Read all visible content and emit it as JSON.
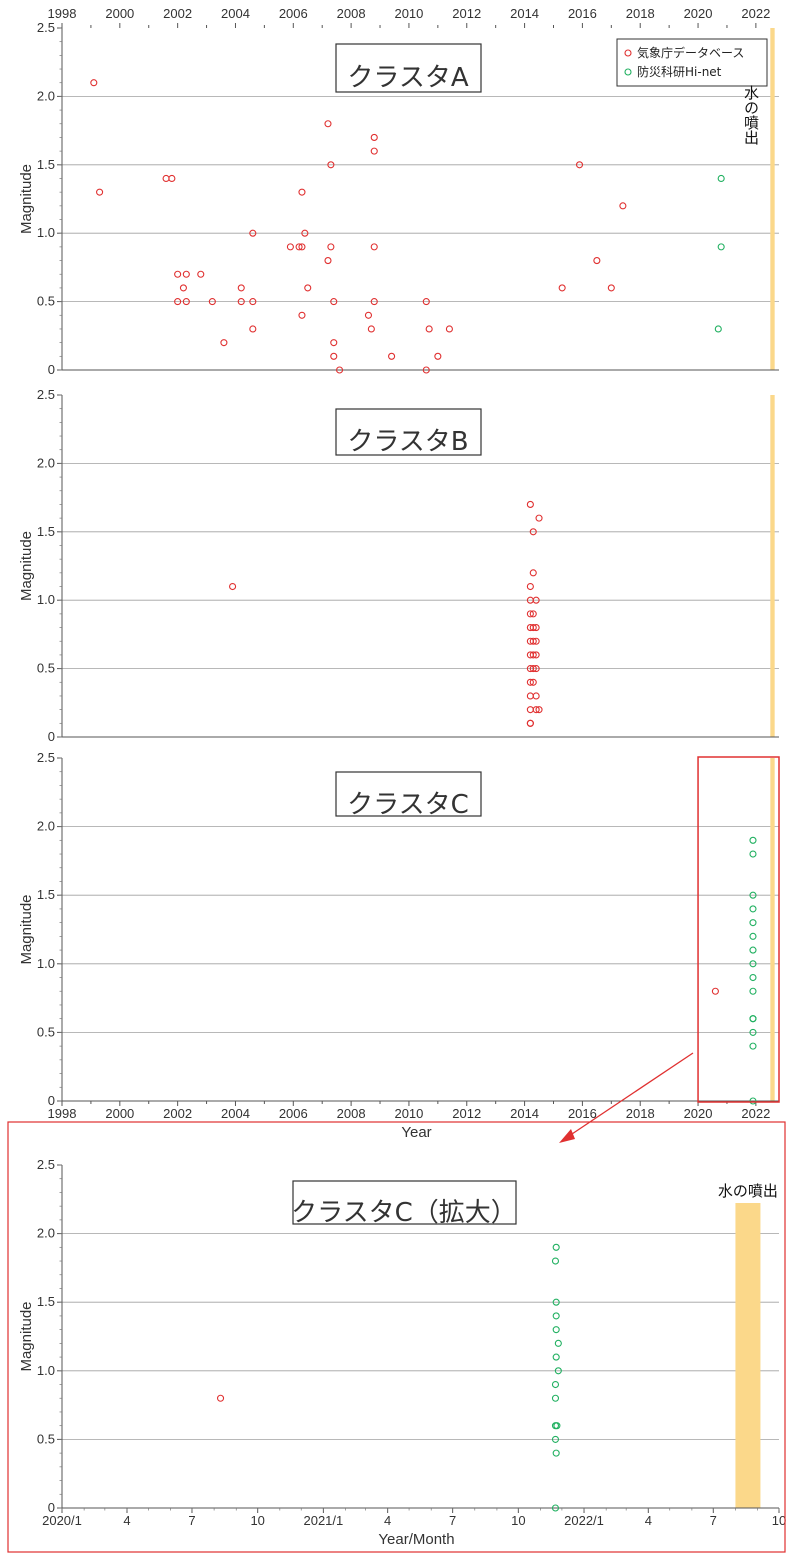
{
  "colors": {
    "jma": "#e03030",
    "hinet": "#20b060",
    "eruption": "#fbd88a",
    "highlight": "#e03030",
    "grid": "#a0a0a0"
  },
  "legend": {
    "jma": "気象庁データベース",
    "hinet": "防災科研Hi-net"
  },
  "eruption_label": "水の噴出",
  "chart_data": [
    {
      "type": "scatter",
      "title": "クラスタA",
      "ylabel": "Magnitude",
      "xlabel": "",
      "xlim": [
        1998,
        2022.8
      ],
      "ylim": [
        0,
        2.5
      ],
      "x_ticks": [
        "1998",
        "2000",
        "2002",
        "2004",
        "2006",
        "2008",
        "2010",
        "2012",
        "2014",
        "2016",
        "2018",
        "2020",
        "2022"
      ],
      "y_ticks": [
        "0",
        "0.5",
        "1.0",
        "1.5",
        "2.0",
        "2.5"
      ],
      "eruption_x": [
        2022.5,
        2022.65
      ],
      "series": [
        {
          "key": "jma",
          "points": [
            [
              1999.1,
              2.1
            ],
            [
              1999.3,
              1.3
            ],
            [
              2001.6,
              1.4
            ],
            [
              2001.8,
              1.4
            ],
            [
              2002.0,
              0.7
            ],
            [
              2002.0,
              0.5
            ],
            [
              2002.2,
              0.6
            ],
            [
              2002.3,
              0.7
            ],
            [
              2002.3,
              0.5
            ],
            [
              2002.8,
              0.7
            ],
            [
              2003.2,
              0.5
            ],
            [
              2003.6,
              0.2
            ],
            [
              2004.2,
              0.6
            ],
            [
              2004.2,
              0.5
            ],
            [
              2004.6,
              1.0
            ],
            [
              2004.6,
              0.5
            ],
            [
              2004.6,
              0.3
            ],
            [
              2005.9,
              0.9
            ],
            [
              2006.2,
              0.9
            ],
            [
              2006.3,
              1.3
            ],
            [
              2006.3,
              0.9
            ],
            [
              2006.3,
              0.4
            ],
            [
              2006.4,
              1.0
            ],
            [
              2006.5,
              0.6
            ],
            [
              2007.2,
              1.8
            ],
            [
              2007.2,
              0.8
            ],
            [
              2007.3,
              1.5
            ],
            [
              2007.3,
              0.9
            ],
            [
              2007.4,
              0.5
            ],
            [
              2007.4,
              0.2
            ],
            [
              2007.4,
              0.1
            ],
            [
              2007.6,
              0.0
            ],
            [
              2008.6,
              0.4
            ],
            [
              2008.7,
              0.3
            ],
            [
              2008.8,
              1.7
            ],
            [
              2008.8,
              1.6
            ],
            [
              2008.8,
              0.9
            ],
            [
              2008.8,
              0.5
            ],
            [
              2009.4,
              0.1
            ],
            [
              2010.6,
              0.5
            ],
            [
              2010.6,
              0.0
            ],
            [
              2010.7,
              0.3
            ],
            [
              2011.0,
              0.1
            ],
            [
              2011.4,
              0.3
            ],
            [
              2015.3,
              0.6
            ],
            [
              2015.9,
              1.5
            ],
            [
              2016.5,
              0.8
            ],
            [
              2017.0,
              0.6
            ],
            [
              2017.4,
              1.2
            ]
          ]
        },
        {
          "key": "hinet",
          "points": [
            [
              2020.7,
              0.3
            ],
            [
              2020.8,
              1.4
            ],
            [
              2020.8,
              0.9
            ]
          ]
        }
      ]
    },
    {
      "type": "scatter",
      "title": "クラスタB",
      "ylabel": "Magnitude",
      "xlabel": "",
      "xlim": [
        1998,
        2022.8
      ],
      "ylim": [
        0,
        2.5
      ],
      "x_ticks": [],
      "y_ticks": [
        "0",
        "0.5",
        "1.0",
        "1.5",
        "2.0",
        "2.5"
      ],
      "eruption_x": [
        2022.5,
        2022.65
      ],
      "series": [
        {
          "key": "jma",
          "points": [
            [
              2003.9,
              1.1
            ],
            [
              2014.2,
              1.7
            ],
            [
              2014.3,
              1.5
            ],
            [
              2014.5,
              1.6
            ],
            [
              2014.3,
              1.2
            ],
            [
              2014.2,
              1.1
            ],
            [
              2014.2,
              1.0
            ],
            [
              2014.4,
              1.0
            ],
            [
              2014.2,
              0.9
            ],
            [
              2014.3,
              0.9
            ],
            [
              2014.2,
              0.8
            ],
            [
              2014.3,
              0.8
            ],
            [
              2014.4,
              0.8
            ],
            [
              2014.2,
              0.7
            ],
            [
              2014.3,
              0.7
            ],
            [
              2014.4,
              0.7
            ],
            [
              2014.2,
              0.6
            ],
            [
              2014.3,
              0.6
            ],
            [
              2014.4,
              0.6
            ],
            [
              2014.2,
              0.5
            ],
            [
              2014.3,
              0.5
            ],
            [
              2014.4,
              0.5
            ],
            [
              2014.2,
              0.4
            ],
            [
              2014.3,
              0.4
            ],
            [
              2014.2,
              0.3
            ],
            [
              2014.4,
              0.3
            ],
            [
              2014.2,
              0.2
            ],
            [
              2014.4,
              0.2
            ],
            [
              2014.5,
              0.2
            ],
            [
              2014.2,
              0.1
            ],
            [
              2014.2,
              0.1
            ]
          ]
        }
      ]
    },
    {
      "type": "scatter",
      "title": "クラスタC",
      "ylabel": "Magnitude",
      "xlabel": "Year",
      "xlim": [
        1998,
        2022.8
      ],
      "ylim": [
        0,
        2.5
      ],
      "x_ticks": [
        "1998",
        "2000",
        "2002",
        "2004",
        "2006",
        "2008",
        "2010",
        "2012",
        "2014",
        "2016",
        "2018",
        "2020",
        "2022"
      ],
      "y_ticks": [
        "0",
        "0.5",
        "1.0",
        "1.5",
        "2.0",
        "2.5"
      ],
      "eruption_x": [
        2022.5,
        2022.65
      ],
      "highlight_x": [
        2020.0,
        2022.8
      ],
      "series": [
        {
          "key": "jma",
          "points": [
            [
              2020.6,
              0.8
            ]
          ]
        },
        {
          "key": "hinet",
          "points": [
            [
              2021.9,
              1.9
            ],
            [
              2021.9,
              1.8
            ],
            [
              2021.9,
              1.5
            ],
            [
              2021.9,
              1.4
            ],
            [
              2021.9,
              1.3
            ],
            [
              2021.9,
              1.2
            ],
            [
              2021.9,
              1.1
            ],
            [
              2021.9,
              1.0
            ],
            [
              2021.9,
              0.9
            ],
            [
              2021.9,
              0.8
            ],
            [
              2021.9,
              0.6
            ],
            [
              2021.9,
              0.6
            ],
            [
              2021.9,
              0.5
            ],
            [
              2021.9,
              0.4
            ],
            [
              2021.9,
              0.0
            ]
          ]
        }
      ]
    },
    {
      "type": "scatter",
      "title": "クラスタC（拡大）",
      "ylabel": "Magnitude",
      "xlabel": "Year/Month",
      "xlim": [
        "2020-01",
        "2022-10"
      ],
      "ylim": [
        0,
        2.5
      ],
      "x_ticks": [
        "2020/1",
        "4",
        "7",
        "10",
        "2021/1",
        "4",
        "7",
        "10",
        "2022/1",
        "4",
        "7",
        "10"
      ],
      "y_ticks": [
        "0",
        "0.5",
        "1.0",
        "1.5",
        "2.0",
        "2.5"
      ],
      "eruption_x": [
        "2022-08-01",
        "2022-09-05"
      ],
      "series": [
        {
          "key": "jma",
          "points": [
            [
              "2020-08-10",
              0.8
            ]
          ]
        },
        {
          "key": "hinet",
          "points": [
            [
              "2021-11-23",
              1.9
            ],
            [
              "2021-11-22",
              1.8
            ],
            [
              "2021-11-23",
              1.5
            ],
            [
              "2021-11-23",
              1.4
            ],
            [
              "2021-11-23",
              1.3
            ],
            [
              "2021-11-26",
              1.2
            ],
            [
              "2021-11-23",
              1.1
            ],
            [
              "2021-11-26",
              1.0
            ],
            [
              "2021-11-22",
              0.9
            ],
            [
              "2021-11-22",
              0.8
            ],
            [
              "2021-11-22",
              0.6
            ],
            [
              "2021-11-24",
              0.6
            ],
            [
              "2021-11-22",
              0.5
            ],
            [
              "2021-11-23",
              0.4
            ],
            [
              "2021-11-22",
              0.0
            ]
          ]
        }
      ]
    }
  ]
}
